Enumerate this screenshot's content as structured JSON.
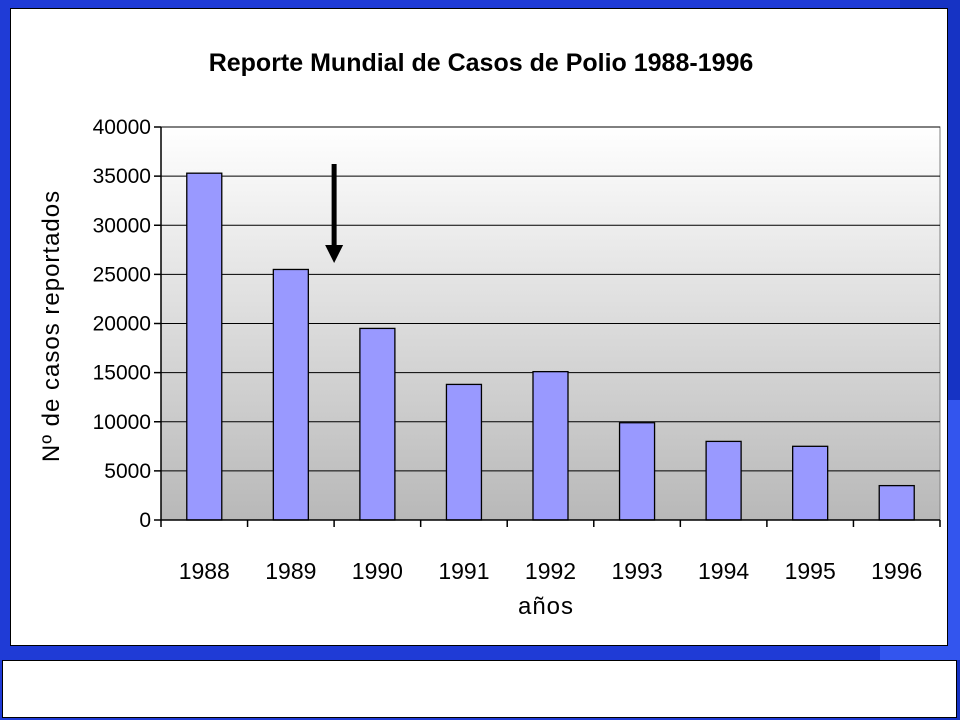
{
  "colors": {
    "slide_background": "#1f3bd6",
    "slide_accent": "#3355ee",
    "bar_fill": "#9999ff",
    "plot_gradient_top": "#ffffff",
    "plot_gradient_bottom": "#b8b8b8"
  },
  "icons": {
    "annotation_arrow": "arrow-down-icon"
  },
  "chart_data": {
    "type": "bar",
    "title": "Reporte Mundial de Casos de Polio 1988-1996",
    "xlabel": "años",
    "ylabel": "Nº de casos reportados",
    "categories": [
      "1988",
      "1989",
      "1990",
      "1991",
      "1992",
      "1993",
      "1994",
      "1995",
      "1996"
    ],
    "values": [
      35300,
      25500,
      19500,
      13800,
      15100,
      9900,
      8000,
      7500,
      3500
    ],
    "ylim": [
      0,
      40000
    ],
    "yticks": [
      0,
      5000,
      10000,
      15000,
      20000,
      25000,
      30000,
      35000,
      40000
    ],
    "ytick_labels": [
      "0",
      "5000",
      "10000",
      "15000",
      "20000",
      "25000",
      "30000",
      "35000",
      "40000"
    ],
    "grid": true,
    "legend": "none",
    "annotation": {
      "type": "arrow-down",
      "between_categories": [
        "1989",
        "1990"
      ]
    }
  }
}
